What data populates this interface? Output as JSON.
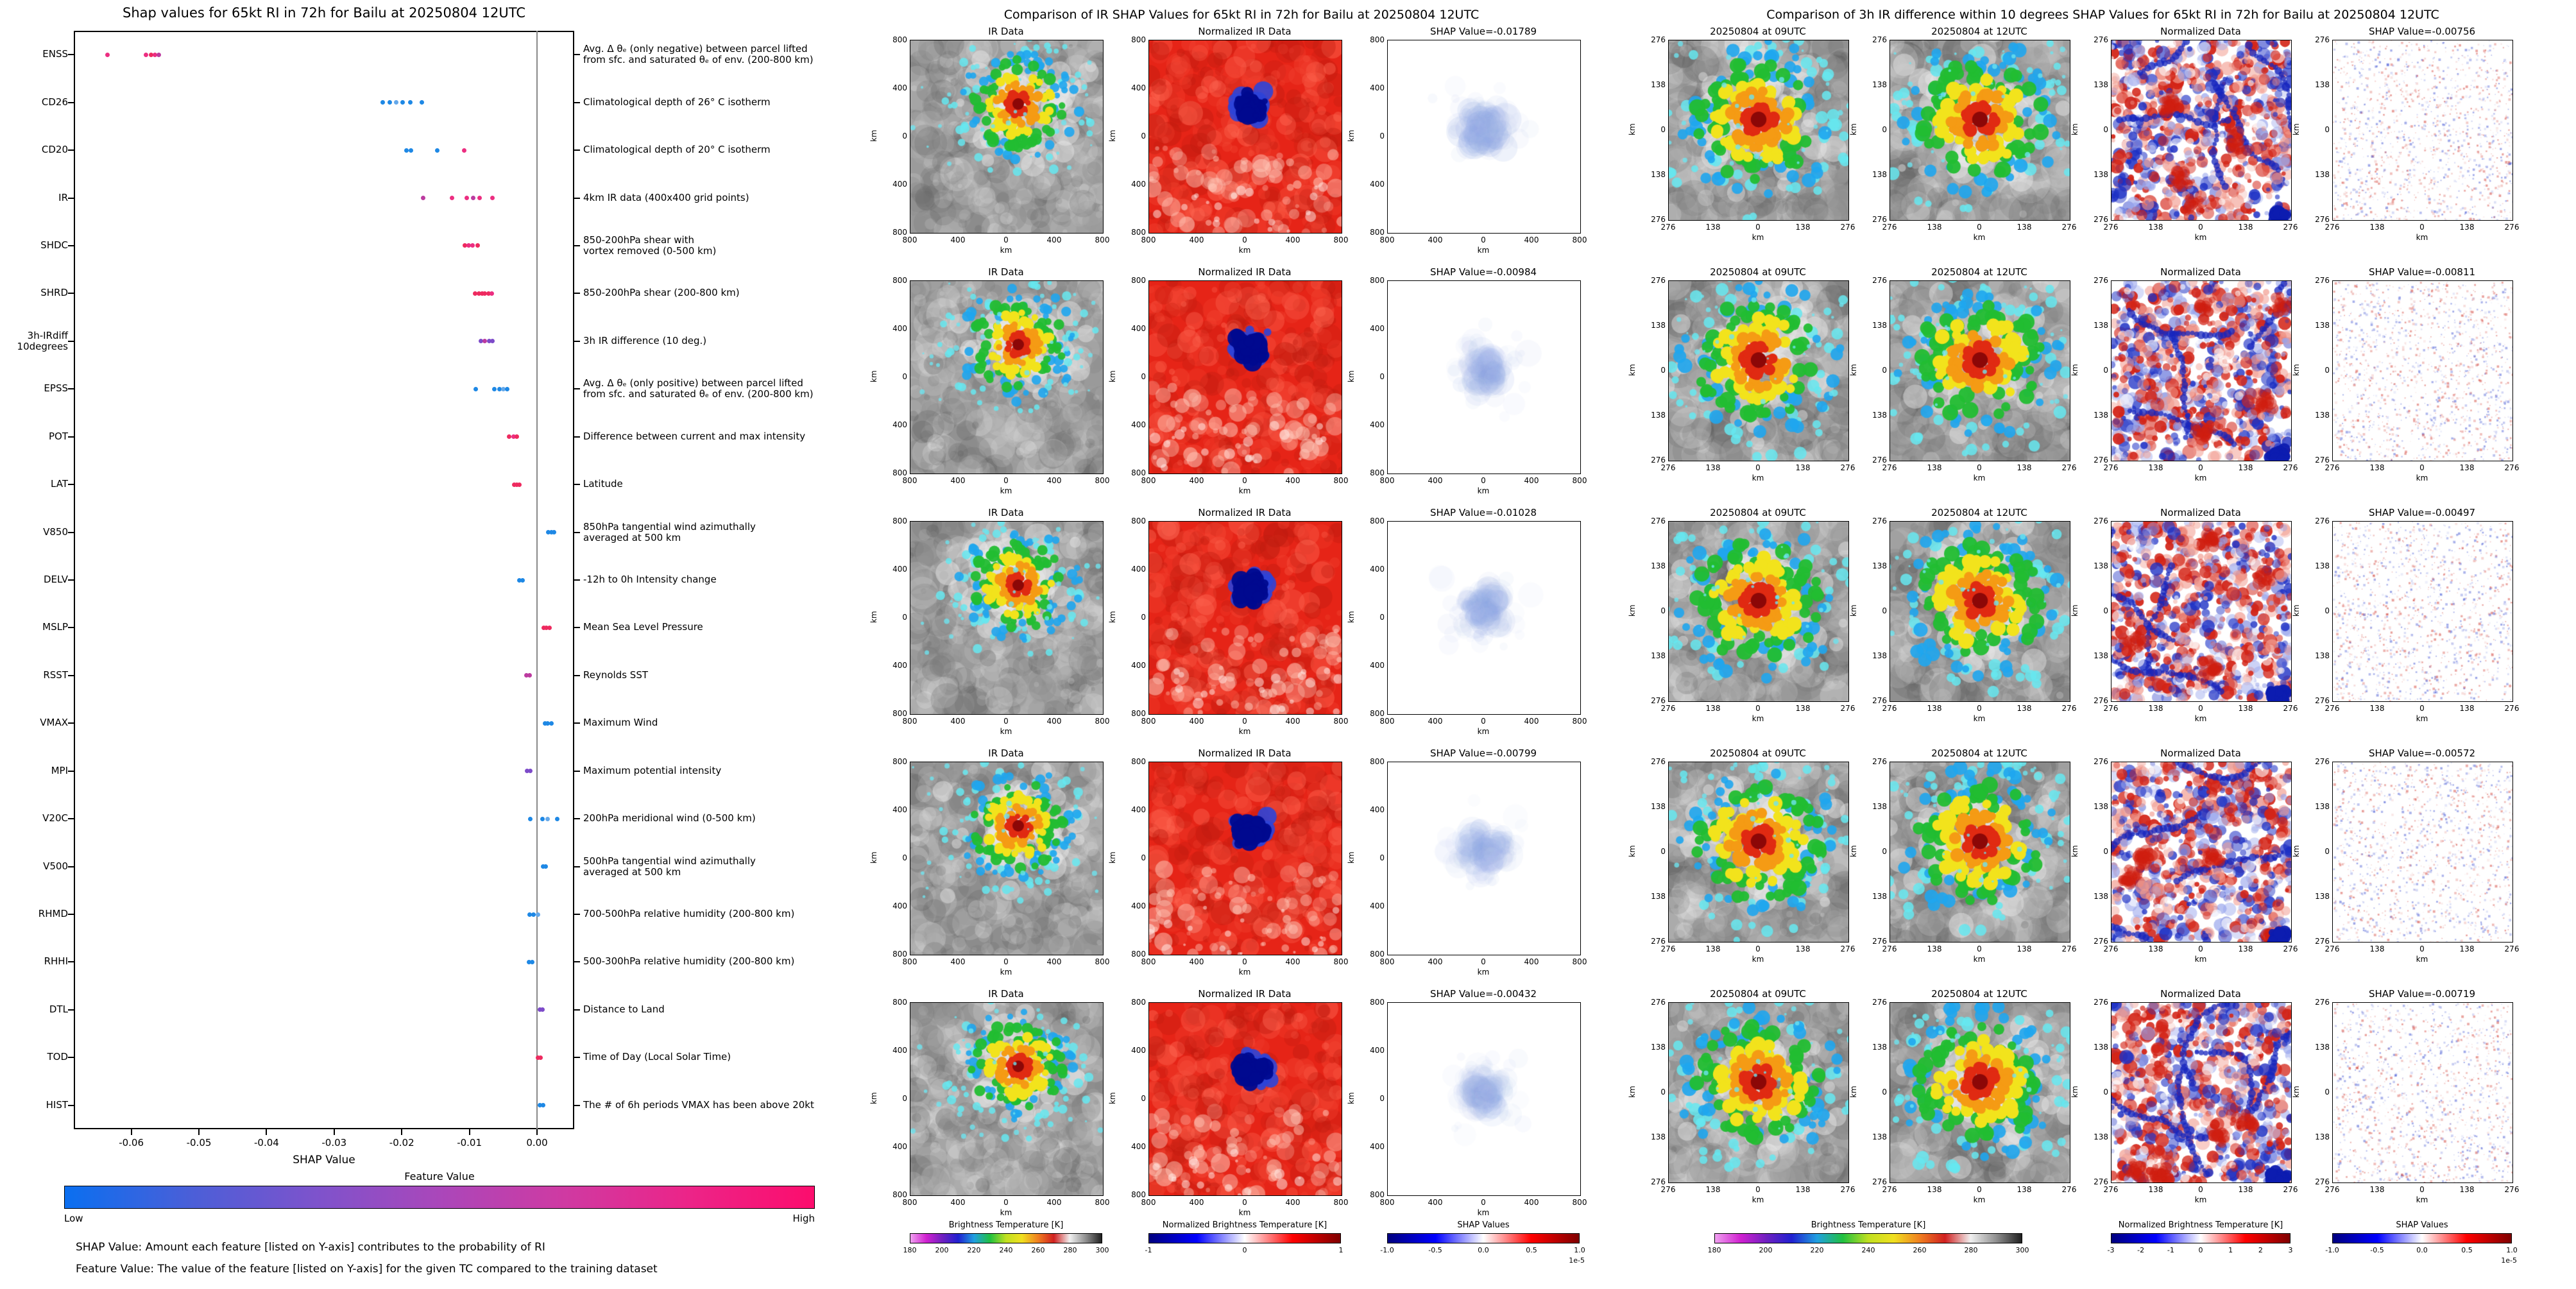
{
  "left_panel": {
    "title": "Shap values for 65kt RI in 72h for Bailu at 20250804 12UTC",
    "xlabel": "SHAP Value",
    "xlim": [
      -0.0685,
      0.0055
    ],
    "xticks": [
      "-0.06",
      "-0.05",
      "-0.04",
      "-0.03",
      "-0.02",
      "-0.01",
      "0.00"
    ],
    "point_colors": {
      "blue": "#1e88e5",
      "lightblue": "#64a8ea",
      "purple": "#7d4bc9",
      "magenta": "#bc3ba0",
      "pink": "#ec2e81",
      "red": "#ee2a5f"
    },
    "features": [
      {
        "key": "ENSS",
        "label": "ENSS",
        "desc": "Avg. Δ θₑ (only negative) between parcel lifted\nfrom sfc. and saturated θₑ of env. (200-800 km)"
      },
      {
        "key": "CD26",
        "label": "CD26",
        "desc": "Climatological depth of 26° C isotherm"
      },
      {
        "key": "CD20",
        "label": "CD20",
        "desc": "Climatological depth of 20° C isotherm"
      },
      {
        "key": "IR",
        "label": "IR",
        "desc": "4km IR data (400x400 grid points)"
      },
      {
        "key": "SHDC",
        "label": "SHDC",
        "desc": "850-200hPa shear with\nvortex removed (0-500 km)"
      },
      {
        "key": "SHRD",
        "label": "SHRD",
        "desc": "850-200hPa shear (200-800 km)"
      },
      {
        "key": "IRdiff3h",
        "label": "3h-IRdiff\n10degrees",
        "desc": "3h IR difference (10 deg.)"
      },
      {
        "key": "EPSS",
        "label": "EPSS",
        "desc": "Avg. Δ θₑ (only positive) between parcel lifted\nfrom sfc. and saturated θₑ of env. (200-800 km)"
      },
      {
        "key": "POT",
        "label": "POT",
        "desc": "Difference between current and max intensity"
      },
      {
        "key": "LAT",
        "label": "LAT",
        "desc": "Latitude"
      },
      {
        "key": "V850",
        "label": "V850",
        "desc": "850hPa tangential wind azimuthally\naveraged at 500 km"
      },
      {
        "key": "DELV",
        "label": "DELV",
        "desc": "-12h to 0h Intensity change"
      },
      {
        "key": "MSLP",
        "label": "MSLP",
        "desc": "Mean Sea Level Pressure"
      },
      {
        "key": "RSST",
        "label": "RSST",
        "desc": "Reynolds SST"
      },
      {
        "key": "VMAX",
        "label": "VMAX",
        "desc": "Maximum Wind"
      },
      {
        "key": "MPI",
        "label": "MPI",
        "desc": "Maximum potential intensity"
      },
      {
        "key": "V20C",
        "label": "V20C",
        "desc": "200hPa meridional wind (0-500 km)"
      },
      {
        "key": "V500",
        "label": "V500",
        "desc": "500hPa tangential wind azimuthally\naveraged at 500 km"
      },
      {
        "key": "RHMD",
        "label": "RHMD",
        "desc": "700-500hPa relative humidity (200-800 km)"
      },
      {
        "key": "RHHI",
        "label": "RHHI",
        "desc": "500-300hPa relative humidity (200-800 km)"
      },
      {
        "key": "DTL",
        "label": "DTL",
        "desc": "Distance to Land"
      },
      {
        "key": "TOD",
        "label": "TOD",
        "desc": "Time of Day (Local Solar Time)"
      },
      {
        "key": "HIST",
        "label": "HIST",
        "desc": "The # of 6h periods VMAX has been above 20kt"
      }
    ],
    "colorbar": {
      "title": "Feature Value",
      "low_label": "Low",
      "high_label": "High",
      "stops": [
        "#0a6ff0",
        "#4a5fd8",
        "#7d53cc",
        "#aa47ba",
        "#cf3aa2",
        "#ec2488",
        "#fc0d6d"
      ]
    },
    "captions": [
      "SHAP Value: Amount each feature [listed on Y-axis] contributes to the probability of RI",
      "Feature Value: The value of the feature [listed on Y-axis] for the given TC compared to the training dataset"
    ]
  },
  "middle_panel": {
    "title": "Comparison of IR SHAP Values for 65kt RI in 72h for Bailu at 20250804 12UTC",
    "col_titles": [
      "IR Data",
      "Normalized IR Data"
    ],
    "rows": [
      {
        "shap_title": "SHAP Value=-0.01789",
        "shap": -0.01789
      },
      {
        "shap_title": "SHAP Value=-0.00984",
        "shap": -0.00984
      },
      {
        "shap_title": "SHAP Value=-0.01028",
        "shap": -0.01028
      },
      {
        "shap_title": "SHAP Value=-0.00799",
        "shap": -0.00799
      },
      {
        "shap_title": "SHAP Value=-0.00432",
        "shap": -0.00432
      }
    ],
    "axis_ticks": [
      "800",
      "400",
      "0",
      "400",
      "800"
    ],
    "axis_label": "km",
    "colorbars": [
      {
        "title": "Brightness Temperature [K]",
        "ticks": [
          "180",
          "200",
          "220",
          "240",
          "260",
          "280",
          "300"
        ],
        "stops": [
          "#f0a0f0",
          "#d020d0",
          "#7020c0",
          "#2020d0",
          "#20a0e0",
          "#20c040",
          "#c0e020",
          "#f0e020",
          "#f08020",
          "#d02020",
          "#f0f0f0",
          "#909090",
          "#202020"
        ]
      },
      {
        "title": "Normalized Brightness Temperature [K]",
        "ticks": [
          "-1",
          "0",
          "1"
        ],
        "stops": [
          "#00007f",
          "#0000ff",
          "#ffffff",
          "#ff0000",
          "#7f0000"
        ]
      },
      {
        "title": "SHAP Values",
        "ticks": [
          "-1.0",
          "-0.5",
          "0.0",
          "0.5",
          "1.0"
        ],
        "exp": "1e-5",
        "stops": [
          "#00007f",
          "#0000ff",
          "#ffffff",
          "#ff0000",
          "#7f0000"
        ]
      }
    ]
  },
  "right_panel": {
    "title": "Comparison of 3h IR difference within 10 degrees SHAP Values for 65kt RI in 72h for Bailu at 20250804 12UTC",
    "col_titles": [
      "20250804 at 09UTC",
      "20250804 at 12UTC",
      "Normalized Data"
    ],
    "rows": [
      {
        "shap_title": "SHAP Value=-0.00756",
        "shap": -0.00756
      },
      {
        "shap_title": "SHAP Value=-0.00811",
        "shap": -0.00811
      },
      {
        "shap_title": "SHAP Value=-0.00497",
        "shap": -0.00497
      },
      {
        "shap_title": "SHAP Value=-0.00572",
        "shap": -0.00572
      },
      {
        "shap_title": "SHAP Value=-0.00719",
        "shap": -0.00719
      }
    ],
    "axis_ticks": [
      "276",
      "138",
      "0",
      "138",
      "276"
    ],
    "axis_label": "km",
    "colorbars": [
      {
        "title": "Brightness Temperature [K]",
        "ticks": [
          "180",
          "200",
          "220",
          "240",
          "260",
          "280",
          "300"
        ],
        "stops": [
          "#f0a0f0",
          "#d020d0",
          "#7020c0",
          "#2020d0",
          "#20a0e0",
          "#20c040",
          "#c0e020",
          "#f0e020",
          "#f08020",
          "#d02020",
          "#f0f0f0",
          "#909090",
          "#202020"
        ]
      },
      {
        "title": "Normalized Brightness Temperature [K]",
        "ticks": [
          "-3",
          "-2",
          "-1",
          "0",
          "1",
          "2",
          "3"
        ],
        "stops": [
          "#00007f",
          "#0000ff",
          "#ffffff",
          "#ff0000",
          "#7f0000"
        ]
      },
      {
        "title": "SHAP Values",
        "ticks": [
          "-1.0",
          "-0.5",
          "0.0",
          "0.5",
          "1.0"
        ],
        "exp": "1e-5",
        "stops": [
          "#00007f",
          "#0000ff",
          "#ffffff",
          "#ff0000",
          "#7f0000"
        ]
      }
    ]
  },
  "chart_data": [
    {
      "type": "scatter",
      "subtype": "shap-beeswarm",
      "title": "Shap values for 65kt RI in 72h for Bailu at 20250804 12UTC",
      "xlabel": "SHAP Value",
      "xlim": [
        -0.0685,
        0.0055
      ],
      "xticks": [
        -0.06,
        -0.05,
        -0.04,
        -0.03,
        -0.02,
        -0.01,
        0.0
      ],
      "zero_line": 0.0,
      "points": {
        "ENSS": [
          [
            -0.0635,
            "pink"
          ],
          [
            -0.0578,
            "pink"
          ],
          [
            -0.0571,
            "red"
          ],
          [
            -0.0565,
            "pink"
          ],
          [
            -0.0559,
            "magenta"
          ]
        ],
        "CD26": [
          [
            -0.0228,
            "blue"
          ],
          [
            -0.0218,
            "blue"
          ],
          [
            -0.0208,
            "lightblue"
          ],
          [
            -0.0199,
            "blue"
          ],
          [
            -0.0187,
            "blue"
          ],
          [
            -0.017,
            "blue"
          ]
        ],
        "CD20": [
          [
            -0.0193,
            "blue"
          ],
          [
            -0.0186,
            "blue"
          ],
          [
            -0.0148,
            "blue"
          ],
          [
            -0.0108,
            "pink"
          ]
        ],
        "IR": [
          [
            -0.0168,
            "magenta"
          ],
          [
            -0.0126,
            "pink"
          ],
          [
            -0.0104,
            "pink"
          ],
          [
            -0.0094,
            "magenta"
          ],
          [
            -0.0085,
            "pink"
          ],
          [
            -0.0066,
            "pink"
          ]
        ],
        "SHDC": [
          [
            -0.0107,
            "red"
          ],
          [
            -0.0101,
            "pink"
          ],
          [
            -0.0095,
            "pink"
          ],
          [
            -0.0088,
            "red"
          ]
        ],
        "SHRD": [
          [
            -0.0092,
            "red"
          ],
          [
            -0.0086,
            "red"
          ],
          [
            -0.0081,
            "red"
          ],
          [
            -0.0077,
            "red"
          ],
          [
            -0.0072,
            "red"
          ],
          [
            -0.0067,
            "pink"
          ]
        ],
        "IRdiff3h": [
          [
            -0.0083,
            "purple"
          ],
          [
            -0.0077,
            "magenta"
          ],
          [
            -0.0071,
            "purple"
          ],
          [
            -0.0066,
            "purple"
          ]
        ],
        "EPSS": [
          [
            -0.0091,
            "blue"
          ],
          [
            -0.0063,
            "blue"
          ],
          [
            -0.0056,
            "blue"
          ],
          [
            -0.005,
            "lightblue"
          ],
          [
            -0.0044,
            "blue"
          ]
        ],
        "POT": [
          [
            -0.0041,
            "red"
          ],
          [
            -0.0035,
            "pink"
          ],
          [
            -0.003,
            "red"
          ]
        ],
        "LAT": [
          [
            -0.0034,
            "red"
          ],
          [
            -0.003,
            "red"
          ],
          [
            -0.0026,
            "red"
          ]
        ],
        "V850": [
          [
            0.0017,
            "blue"
          ],
          [
            0.0021,
            "blue"
          ],
          [
            0.0025,
            "blue"
          ]
        ],
        "DELV": [
          [
            -0.0026,
            "blue"
          ],
          [
            -0.0021,
            "blue"
          ]
        ],
        "MSLP": [
          [
            0.001,
            "red"
          ],
          [
            0.0014,
            "red"
          ],
          [
            0.0018,
            "red"
          ]
        ],
        "RSST": [
          [
            -0.0016,
            "magenta"
          ],
          [
            -0.0011,
            "magenta"
          ]
        ],
        "VMAX": [
          [
            0.0012,
            "blue"
          ],
          [
            0.0016,
            "blue"
          ],
          [
            0.0021,
            "blue"
          ]
        ],
        "MPI": [
          [
            -0.0015,
            "purple"
          ],
          [
            -0.001,
            "purple"
          ]
        ],
        "V20C": [
          [
            -0.001,
            "blue"
          ],
          [
            0.0008,
            "blue"
          ],
          [
            0.0016,
            "lightblue"
          ],
          [
            0.003,
            "blue"
          ]
        ],
        "V500": [
          [
            0.0009,
            "blue"
          ],
          [
            0.0013,
            "blue"
          ]
        ],
        "RHMD": [
          [
            -0.0011,
            "blue"
          ],
          [
            -0.0005,
            "blue"
          ],
          [
            0.0001,
            "lightblue"
          ]
        ],
        "RHHI": [
          [
            -0.0012,
            "blue"
          ],
          [
            -0.0007,
            "blue"
          ]
        ],
        "DTL": [
          [
            0.0004,
            "purple"
          ],
          [
            0.0008,
            "purple"
          ]
        ],
        "TOD": [
          [
            0.0001,
            "red"
          ],
          [
            0.0005,
            "red"
          ]
        ],
        "HIST": [
          [
            0.0004,
            "blue"
          ],
          [
            0.0009,
            "blue"
          ]
        ]
      }
    },
    {
      "type": "heatmap",
      "title": "Comparison of IR SHAP Values for 65kt RI in 72h for Bailu at 20250804 12UTC",
      "axis_range_km": [
        -800,
        800
      ],
      "row_shap_values": [
        -0.01789,
        -0.00984,
        -0.01028,
        -0.00799,
        -0.00432
      ]
    },
    {
      "type": "heatmap",
      "title": "Comparison of 3h IR difference within 10 degrees SHAP Values for 65kt RI in 72h for Bailu at 20250804 12UTC",
      "axis_range_km": [
        -276,
        276
      ],
      "row_shap_values": [
        -0.00756,
        -0.00811,
        -0.00497,
        -0.00572,
        -0.00719
      ]
    }
  ]
}
